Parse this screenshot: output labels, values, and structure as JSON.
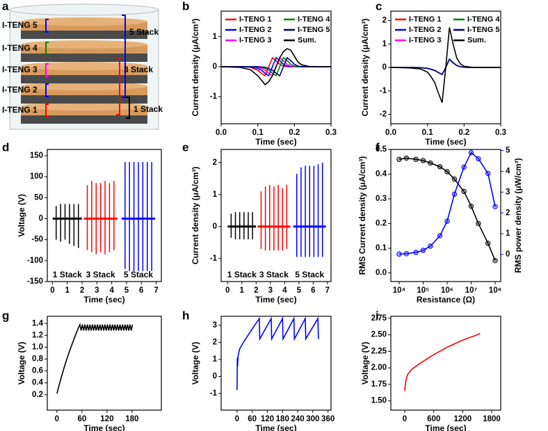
{
  "panel_labels": [
    "a",
    "b",
    "c",
    "d",
    "e",
    "f",
    "g",
    "h",
    "i"
  ],
  "illustration": {
    "layers": [
      "I-TENG 5",
      "I-TENG 4",
      "I-TENG 3",
      "I-TENG 2",
      "I-TENG 1"
    ],
    "stacks": [
      {
        "label": "5 Stack",
        "color": "#0000ff"
      },
      {
        "label": "3 Stack",
        "color": "#ff0000"
      },
      {
        "label": "1 Stack",
        "color": "#000000"
      }
    ]
  },
  "chart_data": [
    {
      "type": "line",
      "xlabel": "Time (sec)",
      "ylabel": "Current density (μA/cm³)",
      "x": [
        0,
        0.05,
        0.08,
        0.1,
        0.11,
        0.12,
        0.13,
        0.14,
        0.15,
        0.16,
        0.17,
        0.18,
        0.19,
        0.2,
        0.21,
        0.22,
        0.24,
        0.27,
        0.3
      ],
      "series": [
        {
          "name": "I-TENG 1",
          "color": "#ff0000",
          "values": [
            0,
            0,
            -0.02,
            -0.12,
            -0.22,
            -0.3,
            0,
            0.3,
            0.2,
            0.08,
            0.02,
            0,
            0,
            0,
            0,
            0,
            0,
            0,
            0
          ]
        },
        {
          "name": "I-TENG 2",
          "color": "#0000ff",
          "values": [
            0,
            0,
            -0.01,
            -0.06,
            -0.12,
            -0.22,
            -0.3,
            0,
            0.3,
            0.2,
            0.08,
            0.02,
            0,
            0,
            0,
            0,
            0,
            0,
            0
          ]
        },
        {
          "name": "I-TENG 3",
          "color": "#ff00ff",
          "values": [
            0,
            0,
            0,
            -0.02,
            -0.06,
            -0.12,
            -0.22,
            -0.3,
            0,
            0.3,
            0.2,
            0.08,
            0.02,
            0,
            0,
            0,
            0,
            0,
            0
          ]
        },
        {
          "name": "I-TENG 4",
          "color": "#008000",
          "values": [
            0,
            0,
            0,
            -0.01,
            -0.02,
            -0.06,
            -0.12,
            -0.22,
            -0.3,
            0,
            0.3,
            0.2,
            0.08,
            0.02,
            0,
            0,
            0,
            0,
            0
          ]
        },
        {
          "name": "I-TENG 5",
          "color": "#000080",
          "values": [
            0,
            0,
            0,
            0,
            -0.01,
            -0.02,
            -0.06,
            -0.12,
            -0.22,
            -0.3,
            0,
            0.3,
            0.2,
            0.08,
            0.02,
            0,
            0,
            0,
            0
          ]
        },
        {
          "name": "Sum.",
          "color": "#000000",
          "values": [
            0,
            -0.02,
            -0.1,
            -0.3,
            -0.45,
            -0.6,
            -0.5,
            -0.3,
            0,
            0.3,
            0.5,
            0.6,
            0.55,
            0.35,
            0.15,
            0.06,
            0.01,
            0,
            0
          ]
        }
      ],
      "xlim": [
        0,
        0.3
      ],
      "ylim": [
        -1.9,
        1.85
      ],
      "xticks": [
        {
          "value": 0,
          "label": "0.0"
        },
        0.1,
        0.2,
        0.3
      ],
      "yticks": [
        -1,
        0,
        1
      ],
      "legend": "top",
      "legend_columns": 2
    },
    {
      "type": "line",
      "xlabel": "Time (sec)",
      "ylabel": "Current density (μA/cm³)",
      "x": [
        0,
        0.05,
        0.08,
        0.1,
        0.11,
        0.12,
        0.13,
        0.14,
        0.15,
        0.16,
        0.17,
        0.18,
        0.19,
        0.2,
        0.22,
        0.25,
        0.3
      ],
      "series": [
        {
          "name": "I-TENG 1",
          "color": "#ff0000",
          "values": [
            0,
            0,
            -0.01,
            -0.04,
            -0.08,
            -0.13,
            -0.22,
            -0.3,
            0,
            0.35,
            0.2,
            0.08,
            0.03,
            0.01,
            0,
            0,
            0
          ]
        },
        {
          "name": "I-TENG 2",
          "color": "#0000ff",
          "values": [
            0,
            0,
            -0.01,
            -0.04,
            -0.08,
            -0.13,
            -0.22,
            -0.3,
            0,
            0.35,
            0.2,
            0.08,
            0.03,
            0.01,
            0,
            0,
            0
          ]
        },
        {
          "name": "I-TENG 3",
          "color": "#ff00ff",
          "values": [
            0,
            0,
            -0.01,
            -0.04,
            -0.08,
            -0.13,
            -0.22,
            -0.3,
            0,
            0.35,
            0.2,
            0.08,
            0.03,
            0.01,
            0,
            0,
            0
          ]
        },
        {
          "name": "I-TENG 4",
          "color": "#008000",
          "values": [
            0,
            0,
            -0.01,
            -0.04,
            -0.08,
            -0.13,
            -0.22,
            -0.3,
            0,
            0.35,
            0.2,
            0.08,
            0.03,
            0.01,
            0,
            0,
            0
          ]
        },
        {
          "name": "I-TENG 5",
          "color": "#000080",
          "values": [
            0,
            0,
            -0.01,
            -0.04,
            -0.08,
            -0.13,
            -0.22,
            -0.3,
            0,
            0.35,
            0.2,
            0.08,
            0.03,
            0.01,
            0,
            0,
            0
          ]
        },
        {
          "name": "Sum.",
          "color": "#000000",
          "values": [
            0,
            -0.02,
            -0.06,
            -0.2,
            -0.4,
            -0.65,
            -1.1,
            -1.5,
            0,
            1.7,
            1.0,
            0.4,
            0.15,
            0.05,
            0.01,
            0,
            0
          ]
        }
      ],
      "xlim": [
        0,
        0.3
      ],
      "ylim": [
        -2.4,
        2.4
      ],
      "xticks": [
        {
          "value": 0,
          "label": "0.0"
        },
        0.1,
        0.2,
        0.3
      ],
      "yticks": [
        -2,
        -1,
        0,
        1,
        2
      ],
      "legend": "top",
      "legend_columns": 2
    },
    {
      "type": "spikes",
      "xlabel": "Time (sec)",
      "ylabel": "Voltage (V)",
      "series": [
        {
          "name": "1 Stack",
          "color": "#000000",
          "x": [
            0.25,
            0.55,
            0.85,
            1.15,
            1.45,
            1.75
          ],
          "peaks": [
            30,
            35,
            35,
            35,
            35,
            35
          ],
          "troughs": [
            -50,
            -55,
            -50,
            -60,
            -65,
            -70
          ]
        },
        {
          "name": "3 Stack",
          "color": "#ff0000",
          "x": [
            2.35,
            2.65,
            2.95,
            3.25,
            3.55,
            3.85,
            4.15
          ],
          "peaks": [
            80,
            90,
            85,
            85,
            90,
            85,
            90
          ],
          "troughs": [
            -75,
            -80,
            -85,
            -80,
            -85,
            -80,
            -75
          ]
        },
        {
          "name": "5 Stack",
          "color": "#0000ff",
          "x": [
            4.9,
            5.2,
            5.5,
            5.8,
            6.1,
            6.4,
            6.7
          ],
          "peaks": [
            135,
            135,
            135,
            135,
            135,
            135,
            135
          ],
          "troughs": [
            -120,
            -125,
            -125,
            -125,
            -125,
            -125,
            -125
          ]
        }
      ],
      "xlim": [
        -0.35,
        7.35
      ],
      "ylim": [
        -150,
        165
      ],
      "xticks": [
        0,
        1,
        2,
        3,
        4,
        5,
        6,
        7
      ],
      "yticks": [
        -150,
        -100,
        -50,
        0,
        50,
        100,
        150
      ]
    },
    {
      "type": "spikes",
      "xlabel": "Time (sec)",
      "ylabel": "Current density (μA/cm³)",
      "series": [
        {
          "name": "1 Stack",
          "color": "#000000",
          "x": [
            0.25,
            0.55,
            0.85,
            1.15,
            1.45,
            1.75
          ],
          "peaks": [
            0.4,
            0.45,
            0.45,
            0.45,
            0.45,
            0.45
          ],
          "troughs": [
            -0.35,
            -0.4,
            -0.4,
            -0.4,
            -0.4,
            -0.4
          ]
        },
        {
          "name": "3 Stack",
          "color": "#ff0000",
          "x": [
            2.35,
            2.65,
            2.95,
            3.25,
            3.55,
            3.85,
            4.15
          ],
          "peaks": [
            1.1,
            1.25,
            1.3,
            1.25,
            1.3,
            1.2,
            1.3
          ],
          "troughs": [
            -0.7,
            -0.75,
            -0.75,
            -0.75,
            -0.75,
            -0.75,
            -0.7
          ]
        },
        {
          "name": "5 Stack",
          "color": "#0000ff",
          "x": [
            4.85,
            5.15,
            5.45,
            5.75,
            6.05,
            6.35,
            6.65
          ],
          "peaks": [
            1.65,
            1.85,
            1.9,
            1.9,
            1.9,
            1.95,
            2.0
          ],
          "troughs": [
            -0.95,
            -0.95,
            -0.95,
            -0.95,
            -0.95,
            -0.95,
            -0.95
          ]
        }
      ],
      "xlim": [
        -0.45,
        7.25
      ],
      "ylim": [
        -1.72,
        2.41
      ],
      "xticks": [
        0,
        1,
        2,
        3,
        4,
        5,
        6,
        7
      ],
      "yticks": [
        -1,
        0,
        1,
        2
      ]
    },
    {
      "type": "line",
      "xlabel": "Resistance (Ω)",
      "ylabel": "RMS Current density (μA/cm³)",
      "y2label": "RMS power density (μW/cm³)",
      "xscale": "log",
      "markers": true,
      "x": [
        10000,
        20000,
        50000,
        100000,
        200000,
        500000,
        1000000,
        2000000,
        5000000,
        10000000,
        20000000,
        50000000,
        100000000
      ],
      "series": [
        {
          "color": "#000000",
          "values": [
            0.46,
            0.465,
            0.46,
            0.455,
            0.445,
            0.43,
            0.41,
            0.38,
            0.33,
            0.27,
            0.2,
            0.12,
            0.05
          ]
        },
        {
          "color": "#0000ff",
          "axis": "y2",
          "values": [
            0.02,
            0.04,
            0.1,
            0.2,
            0.4,
            0.9,
            1.6,
            2.9,
            4.2,
            4.9,
            4.6,
            3.9,
            2.3
          ]
        }
      ],
      "xlim": [
        4500,
        170000000
      ],
      "ylim": [
        -0.035,
        0.5
      ],
      "y2lim": [
        -1.3,
        5.05
      ],
      "xticks": [
        {
          "value": 10000,
          "label": "10⁴"
        },
        {
          "value": 100000,
          "label": "10⁵"
        },
        {
          "value": 1000000,
          "label": "10⁶"
        },
        {
          "value": 10000000,
          "label": "10⁷"
        },
        {
          "value": 100000000,
          "label": "10⁸"
        }
      ],
      "yticks": [
        {
          "value": 0,
          "label": "0.0"
        },
        0.1,
        0.2,
        0.3,
        0.4,
        0.5
      ],
      "y2ticks": [
        0,
        1,
        2,
        3,
        4,
        5
      ]
    },
    {
      "type": "line",
      "xlabel": "Time (sec)",
      "ylabel": "Voltage (V)",
      "x": [
        0,
        10,
        20,
        30,
        40,
        50,
        55,
        58,
        61,
        64,
        67,
        70,
        73,
        76,
        79,
        82,
        85,
        88,
        91,
        94,
        97,
        100,
        103,
        106,
        109,
        112,
        115,
        118,
        121,
        124,
        127,
        130,
        133,
        136,
        139,
        142,
        145,
        148,
        151,
        154,
        157,
        160,
        163,
        166,
        169,
        172,
        175,
        178,
        181
      ],
      "series": [
        {
          "color": "#000000",
          "values": [
            0.22,
            0.48,
            0.72,
            0.93,
            1.12,
            1.3,
            1.38,
            1.28,
            1.38,
            1.28,
            1.38,
            1.28,
            1.38,
            1.28,
            1.38,
            1.28,
            1.38,
            1.28,
            1.38,
            1.28,
            1.38,
            1.28,
            1.38,
            1.28,
            1.38,
            1.28,
            1.38,
            1.28,
            1.38,
            1.28,
            1.38,
            1.28,
            1.38,
            1.28,
            1.38,
            1.28,
            1.38,
            1.28,
            1.38,
            1.28,
            1.38,
            1.28,
            1.38,
            1.28,
            1.38,
            1.28,
            1.38,
            1.28,
            1.38
          ]
        }
      ],
      "xlim": [
        -23,
        250
      ],
      "ylim": [
        -0.06,
        1.52
      ],
      "xticks": [
        0,
        60,
        120,
        180
      ],
      "yticks": [
        0.2,
        0.4,
        0.6,
        0.8,
        {
          "value": 1,
          "label": "1.0"
        },
        1.2,
        1.4
      ]
    },
    {
      "type": "line",
      "xlabel": "Time (sec)",
      "ylabel": "Voltage (V)",
      "x": [
        0,
        1,
        2,
        4,
        10,
        25,
        45,
        65,
        88,
        90,
        135,
        137,
        180,
        182,
        225,
        227,
        270,
        272,
        320,
        322
      ],
      "series": [
        {
          "color": "#0000ff",
          "values": [
            -0.8,
            1.1,
            0.6,
            1.2,
            1.6,
            2.0,
            2.45,
            2.9,
            3.4,
            2.2,
            3.4,
            2.2,
            3.4,
            2.2,
            3.4,
            2.2,
            3.4,
            2.2,
            3.4,
            2.2
          ]
        }
      ],
      "xlim": [
        -63,
        372
      ],
      "ylim": [
        -1.98,
        3.53
      ],
      "xticks": [
        0,
        60,
        120,
        180,
        240,
        300,
        360
      ],
      "yticks": [
        -1,
        0,
        1,
        2,
        3
      ]
    },
    {
      "type": "line",
      "xlabel": "Time (sec)",
      "ylabel": "Voltage (V)",
      "x": [
        0,
        20,
        60,
        150,
        300,
        600,
        900,
        1200,
        1500,
        1560
      ],
      "series": [
        {
          "color": "#ff0000",
          "values": [
            1.65,
            1.8,
            1.9,
            1.98,
            2.06,
            2.2,
            2.32,
            2.42,
            2.5,
            2.52
          ]
        }
      ],
      "xlim": [
        -288,
        1987
      ],
      "ylim": [
        1.36,
        2.78
      ],
      "xticks": [
        0,
        600,
        1200,
        1800
      ],
      "yticks": [
        {
          "value": 1.5,
          "label": "1.50"
        },
        {
          "value": 1.75,
          "label": "1.75"
        },
        {
          "value": 2,
          "label": "2.00"
        },
        {
          "value": 2.25,
          "label": "2.25"
        },
        {
          "value": 2.5,
          "label": "2.50"
        },
        {
          "value": 2.75,
          "label": "2.75"
        }
      ]
    }
  ]
}
